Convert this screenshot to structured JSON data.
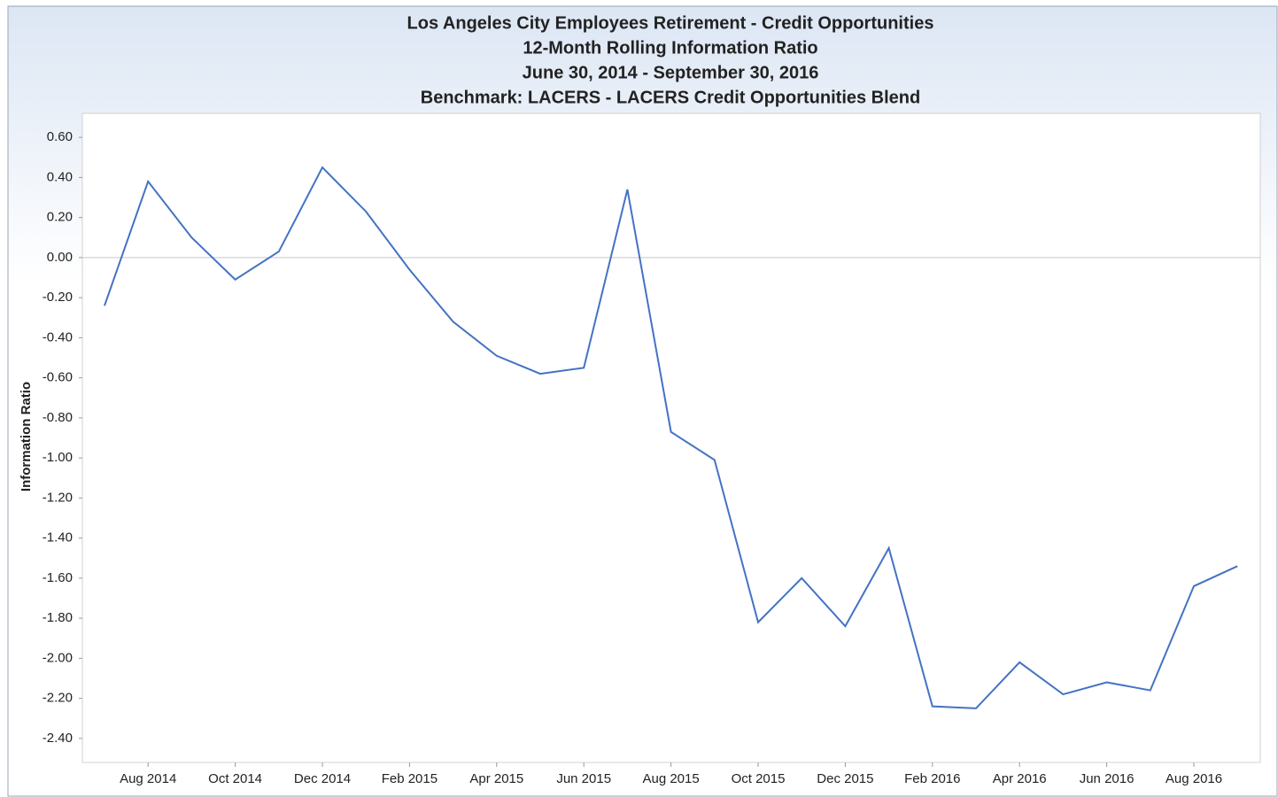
{
  "chart_data": {
    "type": "line",
    "title": [
      "Los Angeles City Employees Retirement - Credit Opportunities",
      "12-Month Rolling Information Ratio",
      "June 30, 2014 - September 30, 2016",
      "Benchmark: LACERS - LACERS Credit Opportunities Blend"
    ],
    "y_label": "Information Ratio",
    "categories": [
      null,
      "Aug 2014",
      null,
      "Oct 2014",
      null,
      "Dec 2014",
      null,
      "Feb 2015",
      null,
      "Apr 2015",
      null,
      "Jun 2015",
      null,
      "Aug 2015",
      null,
      "Oct 2015",
      null,
      "Dec 2015",
      null,
      "Feb 2016",
      null,
      "Apr 2016",
      null,
      "Jun 2016",
      null,
      "Aug 2016",
      null
    ],
    "series": [
      {
        "name": "Information Ratio",
        "color": "#4472c4",
        "values": [
          -0.24,
          0.38,
          0.1,
          -0.11,
          0.03,
          0.45,
          0.23,
          -0.06,
          -0.32,
          -0.49,
          -0.58,
          -0.55,
          0.34,
          -0.87,
          -1.01,
          -1.82,
          -1.6,
          -1.84,
          -1.45,
          -2.24,
          -2.25,
          -2.02,
          -2.18,
          -2.12,
          -2.16,
          -1.64,
          -1.54
        ]
      }
    ],
    "ylim": [
      -2.52,
      0.72
    ],
    "yticks": [
      {
        "value": 0.6,
        "label": "0.60"
      },
      {
        "value": 0.4,
        "label": "0.40"
      },
      {
        "value": 0.2,
        "label": "0.20"
      },
      {
        "value": 0,
        "label": "0.00"
      },
      {
        "value": -0.2,
        "label": "-0.20"
      },
      {
        "value": -0.4,
        "label": "-0.40"
      },
      {
        "value": -0.6,
        "label": "-0.60"
      },
      {
        "value": -0.8,
        "label": "-0.80"
      },
      {
        "value": -1,
        "label": "-1.00"
      },
      {
        "value": -1.2,
        "label": "-1.20"
      },
      {
        "value": -1.4,
        "label": "-1.40"
      },
      {
        "value": -1.6,
        "label": "-1.60"
      },
      {
        "value": -1.8,
        "label": "-1.80"
      },
      {
        "value": -2,
        "label": "-2.00"
      },
      {
        "value": -2.2,
        "label": "-2.20"
      },
      {
        "value": -2.4,
        "label": "-2.40"
      }
    ],
    "zero_line": true
  }
}
